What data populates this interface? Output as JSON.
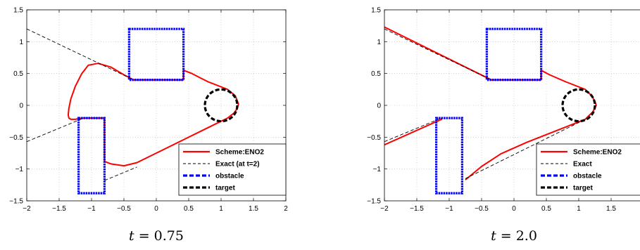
{
  "chart_data": [
    {
      "type": "line",
      "caption": "t = 0.75",
      "caption_var": "t",
      "caption_rest": " = 0.75",
      "xlim": [
        -2,
        2
      ],
      "ylim": [
        -1.5,
        1.5
      ],
      "xticks": [
        "−2",
        "−1.5",
        "−1",
        "−0.5",
        "0",
        "0.5",
        "1",
        "1.5",
        "2"
      ],
      "yticks": [
        "1.5",
        "1",
        "0.5",
        "0",
        "−0.5",
        "−1",
        "−1.5"
      ],
      "grid": true,
      "legend_position": "bottom-right",
      "legend": [
        "Scheme:ENO2",
        "Exact (at t=2)",
        "obstacle",
        "target"
      ],
      "series": [
        {
          "name": "Scheme:ENO2",
          "color": "#ff0000",
          "style": "solid",
          "x": [
            -0.35,
            -0.5,
            -0.7,
            -0.9,
            -1.05,
            -1.15,
            -1.25,
            -1.32,
            -1.35,
            -1.36,
            -1.35,
            -1.32,
            -1.25,
            -1.2,
            -1.12,
            -1.12,
            -0.8,
            -0.8,
            -0.7,
            -0.5,
            -0.3,
            0.1,
            0.4,
            0.8,
            1.1,
            1.2,
            1.25,
            1.27,
            1.22,
            1.1,
            0.9,
            0.8,
            0.7,
            0.55,
            0.42,
            0.42,
            -0.35
          ],
          "y": [
            0.4,
            0.48,
            0.6,
            0.66,
            0.63,
            0.5,
            0.3,
            0.1,
            -0.05,
            -0.15,
            -0.2,
            -0.22,
            -0.22,
            -0.21,
            -0.2,
            -0.2,
            -0.2,
            -0.88,
            -0.92,
            -0.95,
            -0.9,
            -0.7,
            -0.55,
            -0.35,
            -0.2,
            -0.12,
            -0.05,
            0.02,
            0.15,
            0.25,
            0.33,
            0.37,
            0.42,
            0.5,
            0.55,
            0.4,
            0.4
          ]
        },
        {
          "name": "Exact (at t=2)",
          "color": "#000000",
          "style": "dashed",
          "segments": [
            {
              "x": [
                -2,
                -0.35
              ],
              "y": [
                1.2,
                0.4
              ]
            },
            {
              "x": [
                -2,
                -1.12
              ],
              "y": [
                -0.57,
                -0.2
              ]
            },
            {
              "x": [
                -0.8,
                -0.3
              ],
              "y": [
                -1.18,
                -0.97
              ]
            }
          ]
        },
        {
          "name": "obstacle",
          "color": "#0000ff",
          "style": "dashed",
          "rects": [
            {
              "x0": -0.42,
              "x1": 0.42,
              "y0": 0.4,
              "y1": 1.2
            },
            {
              "x0": -1.2,
              "x1": -0.8,
              "y0": -1.38,
              "y1": -0.2
            }
          ]
        },
        {
          "name": "target",
          "color": "#000000",
          "style": "dashed",
          "circle": {
            "cx": 1.0,
            "cy": 0.0,
            "r": 0.25
          }
        }
      ]
    },
    {
      "type": "line",
      "caption": "t = 2.0",
      "caption_var": "t",
      "caption_rest": " = 2.0",
      "xlim": [
        -2,
        2
      ],
      "ylim": [
        -1.5,
        1.5
      ],
      "xticks": [
        "−2",
        "−1.5",
        "−1",
        "−0.5",
        "0",
        "0.5",
        "1",
        "1.5"
      ],
      "yticks": [
        "1.5",
        "1",
        "0.5",
        "0",
        "−0.5",
        "−1",
        "−1.5"
      ],
      "grid": true,
      "legend_position": "bottom-right",
      "legend": [
        "Scheme:ENO2",
        "Exact",
        "obstacle",
        "target"
      ],
      "series": [
        {
          "name": "Scheme:ENO2",
          "color": "#ff0000",
          "style": "solid",
          "segments": [
            {
              "x": [
                -2,
                -0.35,
                0.42,
                0.42,
                0.55,
                0.8,
                1.1,
                1.2,
                1.25,
                1.27,
                1.22,
                1.1,
                0.9,
                0.6,
                0.2,
                -0.2,
                -0.5,
                -0.75,
                -0.75
              ],
              "y": [
                1.23,
                0.4,
                0.4,
                0.55,
                0.48,
                0.37,
                0.25,
                0.15,
                0.06,
                0.0,
                -0.1,
                -0.22,
                -0.3,
                -0.42,
                -0.58,
                -0.76,
                -0.96,
                -1.17,
                -1.17
              ]
            },
            {
              "x": [
                -2,
                -1.12,
                -1.12
              ],
              "y": [
                -0.62,
                -0.22,
                -0.2
              ]
            }
          ]
        },
        {
          "name": "Exact",
          "color": "#000000",
          "style": "dashed",
          "segments": [
            {
              "x": [
                -2,
                -0.35
              ],
              "y": [
                1.2,
                0.4
              ]
            },
            {
              "x": [
                -2,
                -1.12
              ],
              "y": [
                -0.57,
                -0.2
              ]
            },
            {
              "x": [
                -0.75,
                1.1
              ],
              "y": [
                -1.15,
                -0.22
              ]
            }
          ]
        },
        {
          "name": "obstacle",
          "color": "#0000ff",
          "style": "dashed",
          "rects": [
            {
              "x0": -0.42,
              "x1": 0.42,
              "y0": 0.4,
              "y1": 1.2
            },
            {
              "x0": -1.2,
              "x1": -0.8,
              "y0": -1.38,
              "y1": -0.2
            }
          ]
        },
        {
          "name": "target",
          "color": "#000000",
          "style": "dashed",
          "circle": {
            "cx": 1.0,
            "cy": 0.0,
            "r": 0.25
          }
        }
      ]
    }
  ]
}
